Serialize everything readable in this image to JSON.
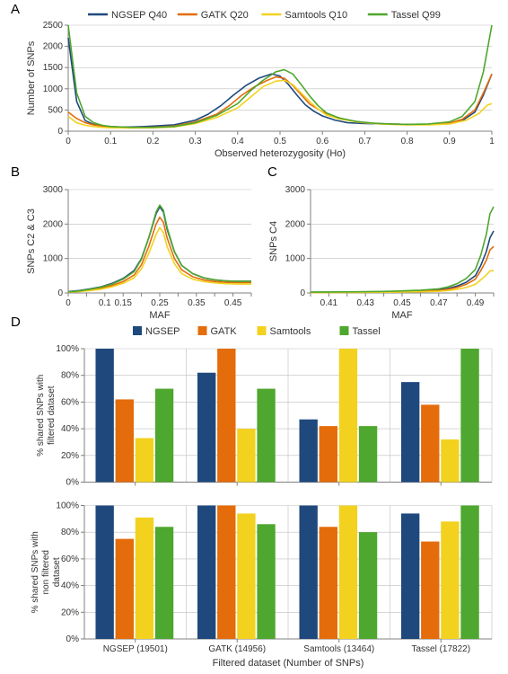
{
  "colors": {
    "ngsep": "#1f497d",
    "gatk": "#e46c0a",
    "samtools": "#f2d21f",
    "tassel": "#4ea72e",
    "axis": "#808080",
    "grid": "#bfbfbf",
    "text": "#333333",
    "bg": "#ffffff"
  },
  "panelA": {
    "label": "A",
    "legend": [
      {
        "label": "NGSEP Q40",
        "color": "#1f497d"
      },
      {
        "label": "GATK Q20",
        "color": "#e46c0a"
      },
      {
        "label": "Samtools Q10",
        "color": "#f2d21f"
      },
      {
        "label": "Tassel Q99",
        "color": "#4ea72e"
      }
    ],
    "xlabel": "Observed heterozygosity (Ho)",
    "ylabel": "Number of SNPs",
    "xlim": [
      0,
      1
    ],
    "ylim": [
      0,
      2500
    ],
    "xticks": [
      0,
      0.1,
      0.2,
      0.3,
      0.4,
      0.5,
      0.6,
      0.7,
      0.8,
      0.9,
      1
    ],
    "yticks": [
      0,
      500,
      1000,
      1500,
      2000,
      2500
    ],
    "line_width": 1.6,
    "series": {
      "ngsep": {
        "x": [
          0.0,
          0.02,
          0.04,
          0.06,
          0.08,
          0.1,
          0.12,
          0.15,
          0.18,
          0.2,
          0.25,
          0.3,
          0.33,
          0.36,
          0.39,
          0.42,
          0.45,
          0.48,
          0.5,
          0.52,
          0.54,
          0.56,
          0.58,
          0.6,
          0.63,
          0.66,
          0.7,
          0.75,
          0.8,
          0.85,
          0.9,
          0.93,
          0.96,
          0.98,
          1.0
        ],
        "y": [
          2200,
          700,
          250,
          160,
          130,
          110,
          100,
          100,
          110,
          120,
          150,
          260,
          400,
          600,
          850,
          1080,
          1250,
          1350,
          1300,
          1100,
          850,
          620,
          470,
          360,
          260,
          200,
          180,
          170,
          160,
          160,
          180,
          250,
          450,
          850,
          1350
        ]
      },
      "gatk": {
        "x": [
          0.0,
          0.02,
          0.04,
          0.06,
          0.08,
          0.1,
          0.15,
          0.2,
          0.25,
          0.3,
          0.35,
          0.38,
          0.41,
          0.44,
          0.47,
          0.49,
          0.51,
          0.53,
          0.55,
          0.57,
          0.6,
          0.63,
          0.66,
          0.7,
          0.75,
          0.8,
          0.85,
          0.9,
          0.93,
          0.96,
          0.98,
          1.0
        ],
        "y": [
          450,
          300,
          200,
          150,
          120,
          100,
          90,
          95,
          120,
          220,
          400,
          600,
          850,
          1050,
          1200,
          1280,
          1250,
          1080,
          860,
          640,
          460,
          340,
          260,
          200,
          170,
          160,
          160,
          190,
          280,
          500,
          900,
          1350
        ]
      },
      "samtools": {
        "x": [
          0.0,
          0.02,
          0.04,
          0.06,
          0.08,
          0.1,
          0.15,
          0.2,
          0.25,
          0.3,
          0.35,
          0.4,
          0.43,
          0.46,
          0.49,
          0.51,
          0.53,
          0.55,
          0.57,
          0.59,
          0.61,
          0.64,
          0.68,
          0.72,
          0.76,
          0.8,
          0.85,
          0.9,
          0.94,
          0.97,
          0.99,
          1.0
        ],
        "y": [
          350,
          200,
          140,
          110,
          90,
          80,
          75,
          80,
          100,
          180,
          320,
          550,
          800,
          1050,
          1180,
          1200,
          1100,
          900,
          700,
          520,
          380,
          290,
          220,
          180,
          160,
          150,
          150,
          170,
          260,
          420,
          620,
          650
        ]
      },
      "tassel": {
        "x": [
          0.0,
          0.02,
          0.04,
          0.06,
          0.08,
          0.1,
          0.15,
          0.2,
          0.25,
          0.3,
          0.35,
          0.4,
          0.43,
          0.46,
          0.49,
          0.51,
          0.53,
          0.55,
          0.57,
          0.59,
          0.61,
          0.64,
          0.68,
          0.72,
          0.76,
          0.8,
          0.85,
          0.9,
          0.93,
          0.96,
          0.98,
          1.0
        ],
        "y": [
          2500,
          900,
          350,
          200,
          140,
          110,
          90,
          90,
          110,
          200,
          370,
          650,
          950,
          1200,
          1400,
          1450,
          1350,
          1100,
          830,
          600,
          430,
          310,
          230,
          190,
          170,
          160,
          170,
          220,
          350,
          700,
          1400,
          2500
        ]
      }
    }
  },
  "panelB": {
    "label": "B",
    "xlabel": "MAF",
    "ylabel": "SNPs C2 & C3",
    "xlim": [
      0,
      0.5
    ],
    "ylim": [
      0,
      3000
    ],
    "xticks": [
      0,
      0.05,
      0.1,
      0.15,
      0.2,
      0.25,
      0.3,
      0.35,
      0.4,
      0.45,
      0.5
    ],
    "xticklabels": [
      "0",
      "",
      "0.1",
      "0.15",
      "",
      "0.25",
      "",
      "0.35",
      "",
      "0.45",
      ""
    ],
    "yticks": [
      0,
      1000,
      2000,
      3000
    ],
    "line_width": 1.6,
    "series": {
      "ngsep": {
        "x": [
          0.0,
          0.03,
          0.06,
          0.09,
          0.12,
          0.15,
          0.18,
          0.2,
          0.22,
          0.24,
          0.25,
          0.26,
          0.27,
          0.29,
          0.31,
          0.34,
          0.37,
          0.4,
          0.43,
          0.46,
          0.49,
          0.5
        ],
        "y": [
          40,
          70,
          120,
          180,
          280,
          420,
          650,
          1000,
          1600,
          2300,
          2500,
          2350,
          1850,
          1200,
          800,
          560,
          440,
          380,
          350,
          340,
          340,
          340
        ]
      },
      "gatk": {
        "x": [
          0.0,
          0.03,
          0.06,
          0.09,
          0.12,
          0.15,
          0.18,
          0.2,
          0.22,
          0.24,
          0.25,
          0.26,
          0.27,
          0.29,
          0.31,
          0.34,
          0.37,
          0.4,
          0.43,
          0.46,
          0.49,
          0.5
        ],
        "y": [
          30,
          50,
          90,
          140,
          220,
          330,
          520,
          820,
          1350,
          2000,
          2200,
          2050,
          1600,
          1000,
          670,
          470,
          380,
          330,
          310,
          300,
          300,
          300
        ]
      },
      "samtools": {
        "x": [
          0.0,
          0.03,
          0.06,
          0.09,
          0.12,
          0.15,
          0.18,
          0.2,
          0.22,
          0.24,
          0.25,
          0.26,
          0.27,
          0.29,
          0.31,
          0.34,
          0.37,
          0.4,
          0.43,
          0.46,
          0.49,
          0.5
        ],
        "y": [
          25,
          40,
          70,
          110,
          180,
          280,
          440,
          700,
          1150,
          1700,
          1900,
          1750,
          1350,
          850,
          560,
          400,
          330,
          290,
          270,
          260,
          260,
          260
        ]
      },
      "tassel": {
        "x": [
          0.0,
          0.03,
          0.06,
          0.09,
          0.12,
          0.15,
          0.18,
          0.2,
          0.22,
          0.24,
          0.25,
          0.26,
          0.27,
          0.29,
          0.31,
          0.34,
          0.37,
          0.4,
          0.43,
          0.46,
          0.49,
          0.5
        ],
        "y": [
          35,
          60,
          110,
          170,
          260,
          400,
          620,
          980,
          1600,
          2350,
          2550,
          2400,
          1900,
          1200,
          800,
          560,
          440,
          380,
          350,
          340,
          340,
          340
        ]
      }
    }
  },
  "panelC": {
    "label": "C",
    "xlabel": "MAF",
    "ylabel": "SNPs C4",
    "xlim": [
      0.4,
      0.5
    ],
    "ylim": [
      0,
      3000
    ],
    "xticks": [
      0.4,
      0.41,
      0.42,
      0.43,
      0.44,
      0.45,
      0.46,
      0.47,
      0.48,
      0.49,
      0.5
    ],
    "xticklabels": [
      "",
      "0.41",
      "",
      "0.43",
      "",
      "0.45",
      "",
      "0.47",
      "",
      "0.49",
      ""
    ],
    "yticks": [
      0,
      1000,
      2000,
      3000
    ],
    "line_width": 1.6,
    "series": {
      "ngsep": {
        "x": [
          0.4,
          0.42,
          0.44,
          0.45,
          0.46,
          0.47,
          0.475,
          0.48,
          0.485,
          0.49,
          0.493,
          0.496,
          0.498,
          0.5
        ],
        "y": [
          20,
          25,
          35,
          45,
          60,
          90,
          130,
          200,
          310,
          500,
          800,
          1200,
          1600,
          1800
        ]
      },
      "gatk": {
        "x": [
          0.4,
          0.42,
          0.44,
          0.45,
          0.46,
          0.47,
          0.475,
          0.48,
          0.485,
          0.49,
          0.493,
          0.496,
          0.498,
          0.5
        ],
        "y": [
          15,
          20,
          28,
          36,
          48,
          72,
          105,
          160,
          250,
          400,
          650,
          950,
          1250,
          1350
        ]
      },
      "samtools": {
        "x": [
          0.4,
          0.42,
          0.44,
          0.45,
          0.46,
          0.47,
          0.475,
          0.48,
          0.485,
          0.49,
          0.493,
          0.496,
          0.498,
          0.5
        ],
        "y": [
          10,
          14,
          20,
          26,
          34,
          50,
          70,
          105,
          160,
          250,
          380,
          520,
          640,
          650
        ]
      },
      "tassel": {
        "x": [
          0.4,
          0.42,
          0.44,
          0.45,
          0.46,
          0.47,
          0.475,
          0.48,
          0.485,
          0.49,
          0.493,
          0.496,
          0.498,
          0.5
        ],
        "y": [
          25,
          32,
          45,
          60,
          80,
          120,
          175,
          270,
          420,
          680,
          1100,
          1700,
          2300,
          2500
        ]
      }
    }
  },
  "panelD": {
    "label": "D",
    "legend": [
      {
        "label": "NGSEP",
        "color": "#1f497d"
      },
      {
        "label": "GATK",
        "color": "#e46c0a"
      },
      {
        "label": "Samtools",
        "color": "#f2d21f"
      },
      {
        "label": "Tassel",
        "color": "#4ea72e"
      }
    ],
    "xlabel": "Filtered dataset (Number of SNPs)",
    "categories": [
      "NGSEP (19501)",
      "GATK (14956)",
      "Samtools (13464)",
      "Tassel (17822)"
    ],
    "bar_width": 0.78,
    "chartTop": {
      "ylabel": "% shared SNPs with filtered dataset",
      "ylim": [
        0,
        100
      ],
      "yticks": [
        0,
        20,
        40,
        60,
        80,
        100
      ],
      "yticklabels": [
        "0%",
        "20%",
        "40%",
        "60%",
        "80%",
        "100%"
      ],
      "series": {
        "ngsep": [
          100,
          82,
          47,
          75
        ],
        "gatk": [
          62,
          100,
          42,
          58
        ],
        "samtools": [
          33,
          40,
          100,
          32
        ],
        "tassel": [
          70,
          70,
          42,
          100
        ]
      }
    },
    "chartBottom": {
      "ylabel": "% shared SNPs with non filtered dataset",
      "ylim": [
        0,
        100
      ],
      "yticks": [
        0,
        20,
        40,
        60,
        80,
        100
      ],
      "yticklabels": [
        "0%",
        "20%",
        "40%",
        "60%",
        "80%",
        "100%"
      ],
      "series": {
        "ngsep": [
          100,
          100,
          100,
          94
        ],
        "gatk": [
          75,
          100,
          84,
          73
        ],
        "samtools": [
          91,
          94,
          100,
          88
        ],
        "tassel": [
          84,
          86,
          80,
          100
        ]
      }
    }
  }
}
